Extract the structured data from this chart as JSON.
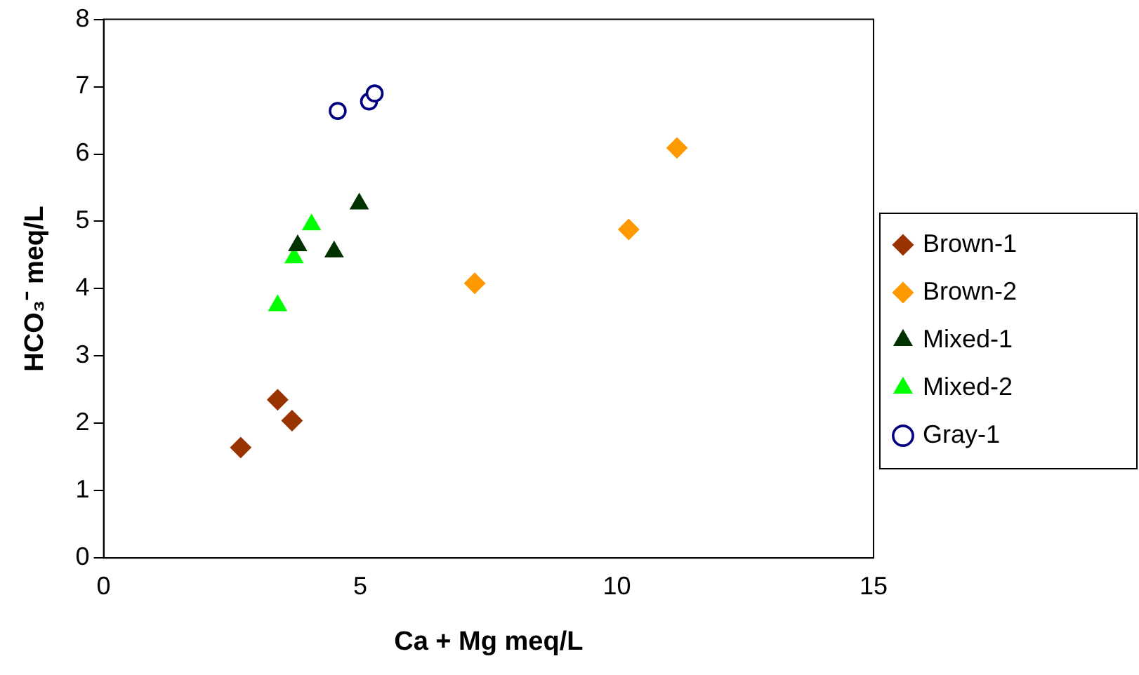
{
  "chart_data": {
    "type": "scatter",
    "xlabel": "Ca + Mg meq/L",
    "ylabel": "HCO₃⁻ meq/L",
    "xlim": [
      0,
      15
    ],
    "xticks": [
      0,
      5,
      10,
      15
    ],
    "ylim": [
      0,
      8
    ],
    "yticks": [
      0,
      1,
      2,
      3,
      4,
      5,
      6,
      7,
      8
    ],
    "grid": false,
    "legend": "right",
    "series": [
      {
        "name": "Brown-1",
        "color": "#993300",
        "marker": "diamond",
        "x": [
          2.67,
          3.39,
          3.67
        ],
        "values": [
          1.64,
          2.35,
          2.04
        ]
      },
      {
        "name": "Brown-2",
        "color": "#ff9900",
        "marker": "diamond",
        "x": [
          7.23,
          10.23,
          11.17
        ],
        "values": [
          4.08,
          4.88,
          6.09
        ]
      },
      {
        "name": "Mixed-1",
        "color": "#003300",
        "marker": "triangle",
        "x": [
          3.78,
          4.49,
          4.98
        ],
        "values": [
          4.64,
          4.55,
          5.26
        ]
      },
      {
        "name": "Mixed-2",
        "color": "#00ff00",
        "marker": "triangle",
        "x": [
          3.39,
          3.71,
          4.05
        ],
        "values": [
          3.75,
          4.46,
          4.95
        ]
      },
      {
        "name": "Gray-1",
        "color": "#000080",
        "marker": "circle",
        "x": [
          4.56,
          5.17,
          5.28
        ],
        "values": [
          6.64,
          6.78,
          6.9
        ]
      }
    ]
  }
}
